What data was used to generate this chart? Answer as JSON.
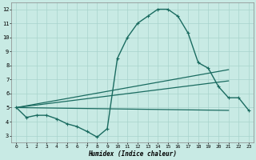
{
  "title": "",
  "xlabel": "Humidex (Indice chaleur)",
  "xlim": [
    -0.5,
    23.5
  ],
  "ylim": [
    2.5,
    12.5
  ],
  "xticks": [
    0,
    1,
    2,
    3,
    4,
    5,
    6,
    7,
    8,
    9,
    10,
    11,
    12,
    13,
    14,
    15,
    16,
    17,
    18,
    19,
    20,
    21,
    22,
    23
  ],
  "yticks": [
    3,
    4,
    5,
    6,
    7,
    8,
    9,
    10,
    11,
    12
  ],
  "background_color": "#c8eae4",
  "grid_color": "#a8d4cc",
  "line_color": "#1a6b60",
  "series": [
    {
      "x": [
        0,
        1,
        2,
        3,
        4,
        5,
        6,
        7,
        8,
        9,
        10,
        11,
        12,
        13,
        14,
        15,
        16,
        17,
        18,
        19,
        20,
        21,
        22,
        23
      ],
      "y": [
        5.0,
        4.3,
        4.45,
        4.45,
        4.2,
        3.85,
        3.65,
        3.3,
        2.9,
        3.5,
        8.5,
        10.0,
        11.0,
        11.5,
        12.0,
        12.0,
        11.5,
        10.3,
        8.2,
        7.8,
        6.5,
        5.7,
        5.7,
        4.8
      ],
      "marker": "+",
      "markersize": 3.5,
      "linewidth": 1.0
    },
    {
      "x": [
        0,
        21
      ],
      "y": [
        5.0,
        7.7
      ],
      "marker": null,
      "linewidth": 0.9
    },
    {
      "x": [
        0,
        21
      ],
      "y": [
        5.0,
        6.9
      ],
      "marker": null,
      "linewidth": 0.9
    },
    {
      "x": [
        0,
        21
      ],
      "y": [
        5.0,
        4.8
      ],
      "marker": null,
      "linewidth": 0.9
    }
  ]
}
